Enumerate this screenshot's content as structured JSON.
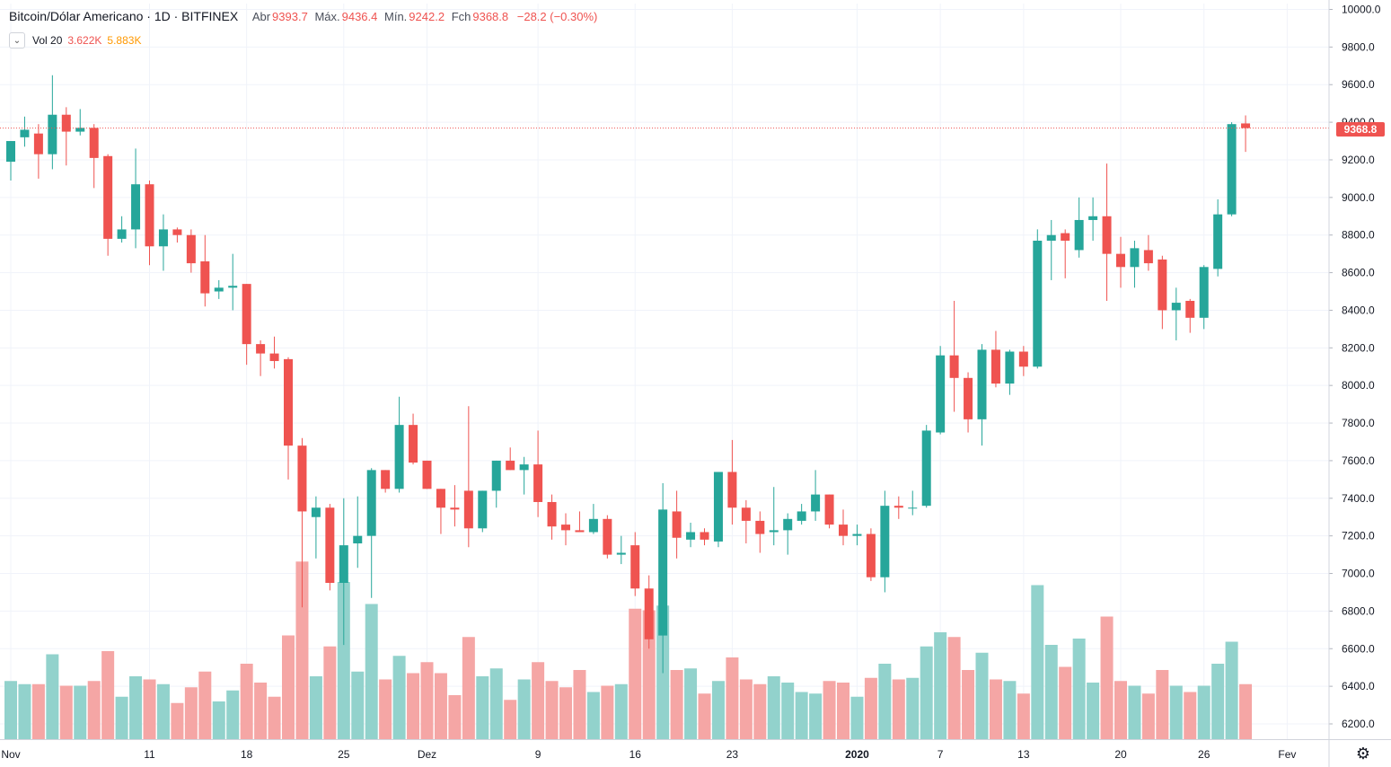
{
  "header": {
    "symbol": "Bitcoin/Dólar Americano · 1D · BITFINEX",
    "open_label": "Abr",
    "open_value": "9393.7",
    "high_label": "Máx.",
    "high_value": "9436.4",
    "low_label": "Mín.",
    "low_value": "9242.2",
    "close_label": "Fch",
    "close_value": "9368.8",
    "change": "−28.2 (−0.30%)"
  },
  "volume_legend": {
    "name": "Vol 20",
    "value1": "3.622K",
    "value2": "5.883K",
    "collapse_icon": "chevron-down-icon"
  },
  "last_price_tag": "9368.8",
  "colors": {
    "up": "#26a69a",
    "down": "#ef5350",
    "vol_up": "#92d2cc",
    "vol_down": "#f5a6a5",
    "grid": "#f0f3fa"
  },
  "chart_data": {
    "type": "candlestick",
    "series_name": "Bitcoin/Dólar Americano",
    "interval": "1D",
    "exchange": "BITFINEX",
    "ylim": [
      6150,
      10050
    ],
    "y_axis_side": "right",
    "y_ticks": [
      "10000.0",
      "9800.0",
      "9600.0",
      "9400.0",
      "9200.0",
      "9000.0",
      "8800.0",
      "8600.0",
      "8400.0",
      "8200.0",
      "8000.0",
      "7800.0",
      "7600.0",
      "7400.0",
      "7200.0",
      "7000.0",
      "6800.0",
      "6600.0",
      "6400.0",
      "6200.0"
    ],
    "x_ticks": [
      {
        "index": 0,
        "label": "Nov",
        "bold": false
      },
      {
        "index": 10,
        "label": "11",
        "bold": false
      },
      {
        "index": 17,
        "label": "18",
        "bold": false
      },
      {
        "index": 24,
        "label": "25",
        "bold": false
      },
      {
        "index": 30,
        "label": "Dez",
        "bold": false
      },
      {
        "index": 38,
        "label": "9",
        "bold": false
      },
      {
        "index": 45,
        "label": "16",
        "bold": false
      },
      {
        "index": 52,
        "label": "23",
        "bold": false
      },
      {
        "index": 61,
        "label": "2020",
        "bold": true
      },
      {
        "index": 67,
        "label": "7",
        "bold": false
      },
      {
        "index": 73,
        "label": "13",
        "bold": false
      },
      {
        "index": 80,
        "label": "20",
        "bold": false
      },
      {
        "index": 86,
        "label": "26",
        "bold": false
      },
      {
        "index": 92,
        "label": "Fev",
        "bold": false
      }
    ],
    "grid": true,
    "last_price_line": 9368.8,
    "candles": [
      {
        "o": 9190,
        "h": 9300,
        "l": 9090,
        "c": 9300,
        "v": 0.37
      },
      {
        "o": 9320,
        "h": 9430,
        "l": 9270,
        "c": 9360,
        "v": 0.35
      },
      {
        "o": 9340,
        "h": 9390,
        "l": 9100,
        "c": 9230,
        "v": 0.35
      },
      {
        "o": 9230,
        "h": 9650,
        "l": 9150,
        "c": 9440,
        "v": 0.54
      },
      {
        "o": 9440,
        "h": 9480,
        "l": 9170,
        "c": 9350,
        "v": 0.34
      },
      {
        "o": 9350,
        "h": 9470,
        "l": 9330,
        "c": 9370,
        "v": 0.34
      },
      {
        "o": 9370,
        "h": 9390,
        "l": 9050,
        "c": 9210,
        "v": 0.37
      },
      {
        "o": 9220,
        "h": 9230,
        "l": 8690,
        "c": 8780,
        "v": 0.56
      },
      {
        "o": 8780,
        "h": 8900,
        "l": 8760,
        "c": 8830,
        "v": 0.27
      },
      {
        "o": 8830,
        "h": 9260,
        "l": 8730,
        "c": 9070,
        "v": 0.4
      },
      {
        "o": 9070,
        "h": 9090,
        "l": 8640,
        "c": 8740,
        "v": 0.38
      },
      {
        "o": 8740,
        "h": 8910,
        "l": 8610,
        "c": 8830,
        "v": 0.35
      },
      {
        "o": 8830,
        "h": 8840,
        "l": 8760,
        "c": 8800,
        "v": 0.23
      },
      {
        "o": 8800,
        "h": 8830,
        "l": 8600,
        "c": 8650,
        "v": 0.33
      },
      {
        "o": 8660,
        "h": 8800,
        "l": 8420,
        "c": 8490,
        "v": 0.43
      },
      {
        "o": 8500,
        "h": 8560,
        "l": 8460,
        "c": 8520,
        "v": 0.24
      },
      {
        "o": 8520,
        "h": 8700,
        "l": 8400,
        "c": 8530,
        "v": 0.31
      },
      {
        "o": 8540,
        "h": 8540,
        "l": 8110,
        "c": 8220,
        "v": 0.48
      },
      {
        "o": 8220,
        "h": 8240,
        "l": 8050,
        "c": 8170,
        "v": 0.36
      },
      {
        "o": 8170,
        "h": 8260,
        "l": 8090,
        "c": 8130,
        "v": 0.27
      },
      {
        "o": 8140,
        "h": 8150,
        "l": 7500,
        "c": 7680,
        "v": 0.66
      },
      {
        "o": 7680,
        "h": 7720,
        "l": 6820,
        "c": 7330,
        "v": 1.13
      },
      {
        "o": 7300,
        "h": 7410,
        "l": 7080,
        "c": 7350,
        "v": 0.4
      },
      {
        "o": 7350,
        "h": 7370,
        "l": 6910,
        "c": 6950,
        "v": 0.59
      },
      {
        "o": 6950,
        "h": 7400,
        "l": 6620,
        "c": 7150,
        "v": 1.0
      },
      {
        "o": 7160,
        "h": 7410,
        "l": 7030,
        "c": 7200,
        "v": 0.43
      },
      {
        "o": 7200,
        "h": 7560,
        "l": 6870,
        "c": 7550,
        "v": 0.86
      },
      {
        "o": 7550,
        "h": 7550,
        "l": 7430,
        "c": 7450,
        "v": 0.38
      },
      {
        "o": 7450,
        "h": 7940,
        "l": 7430,
        "c": 7790,
        "v": 0.53
      },
      {
        "o": 7790,
        "h": 7850,
        "l": 7580,
        "c": 7590,
        "v": 0.42
      },
      {
        "o": 7600,
        "h": 7600,
        "l": 7450,
        "c": 7450,
        "v": 0.49
      },
      {
        "o": 7450,
        "h": 7450,
        "l": 7210,
        "c": 7350,
        "v": 0.42
      },
      {
        "o": 7350,
        "h": 7470,
        "l": 7250,
        "c": 7340,
        "v": 0.28
      },
      {
        "o": 7440,
        "h": 7890,
        "l": 7140,
        "c": 7240,
        "v": 0.65
      },
      {
        "o": 7240,
        "h": 7440,
        "l": 7220,
        "c": 7440,
        "v": 0.4
      },
      {
        "o": 7440,
        "h": 7600,
        "l": 7350,
        "c": 7600,
        "v": 0.45
      },
      {
        "o": 7600,
        "h": 7670,
        "l": 7550,
        "c": 7550,
        "v": 0.25
      },
      {
        "o": 7550,
        "h": 7620,
        "l": 7420,
        "c": 7580,
        "v": 0.38
      },
      {
        "o": 7580,
        "h": 7760,
        "l": 7300,
        "c": 7380,
        "v": 0.49
      },
      {
        "o": 7380,
        "h": 7420,
        "l": 7180,
        "c": 7250,
        "v": 0.37
      },
      {
        "o": 7260,
        "h": 7320,
        "l": 7150,
        "c": 7230,
        "v": 0.33
      },
      {
        "o": 7230,
        "h": 7330,
        "l": 7220,
        "c": 7220,
        "v": 0.44
      },
      {
        "o": 7220,
        "h": 7370,
        "l": 7210,
        "c": 7290,
        "v": 0.3
      },
      {
        "o": 7290,
        "h": 7310,
        "l": 7080,
        "c": 7100,
        "v": 0.34
      },
      {
        "o": 7100,
        "h": 7200,
        "l": 7050,
        "c": 7110,
        "v": 0.35
      },
      {
        "o": 7150,
        "h": 7220,
        "l": 6880,
        "c": 6920,
        "v": 0.83
      },
      {
        "o": 6920,
        "h": 6990,
        "l": 6600,
        "c": 6650,
        "v": 0.82
      },
      {
        "o": 6670,
        "h": 7480,
        "l": 6470,
        "c": 7340,
        "v": 0.85
      },
      {
        "o": 7330,
        "h": 7440,
        "l": 7080,
        "c": 7190,
        "v": 0.44
      },
      {
        "o": 7180,
        "h": 7270,
        "l": 7140,
        "c": 7220,
        "v": 0.45
      },
      {
        "o": 7220,
        "h": 7240,
        "l": 7150,
        "c": 7180,
        "v": 0.29
      },
      {
        "o": 7170,
        "h": 7540,
        "l": 7140,
        "c": 7540,
        "v": 0.37
      },
      {
        "o": 7540,
        "h": 7710,
        "l": 7260,
        "c": 7350,
        "v": 0.52
      },
      {
        "o": 7350,
        "h": 7390,
        "l": 7160,
        "c": 7280,
        "v": 0.38
      },
      {
        "o": 7280,
        "h": 7330,
        "l": 7110,
        "c": 7210,
        "v": 0.35
      },
      {
        "o": 7220,
        "h": 7460,
        "l": 7150,
        "c": 7230,
        "v": 0.4
      },
      {
        "o": 7230,
        "h": 7320,
        "l": 7100,
        "c": 7290,
        "v": 0.36
      },
      {
        "o": 7280,
        "h": 7370,
        "l": 7260,
        "c": 7330,
        "v": 0.3
      },
      {
        "o": 7330,
        "h": 7550,
        "l": 7280,
        "c": 7420,
        "v": 0.29
      },
      {
        "o": 7420,
        "h": 7420,
        "l": 7240,
        "c": 7260,
        "v": 0.37
      },
      {
        "o": 7260,
        "h": 7340,
        "l": 7150,
        "c": 7200,
        "v": 0.36
      },
      {
        "o": 7200,
        "h": 7260,
        "l": 7150,
        "c": 7210,
        "v": 0.27
      },
      {
        "o": 7210,
        "h": 7240,
        "l": 6960,
        "c": 6980,
        "v": 0.39
      },
      {
        "o": 6980,
        "h": 7440,
        "l": 6900,
        "c": 7360,
        "v": 0.48
      },
      {
        "o": 7360,
        "h": 7410,
        "l": 7290,
        "c": 7350,
        "v": 0.38
      },
      {
        "o": 7350,
        "h": 7440,
        "l": 7310,
        "c": 7350,
        "v": 0.39
      },
      {
        "o": 7360,
        "h": 7790,
        "l": 7350,
        "c": 7760,
        "v": 0.59
      },
      {
        "o": 7750,
        "h": 8210,
        "l": 7740,
        "c": 8160,
        "v": 0.68
      },
      {
        "o": 8160,
        "h": 8450,
        "l": 7860,
        "c": 8040,
        "v": 0.65
      },
      {
        "o": 8040,
        "h": 8070,
        "l": 7750,
        "c": 7820,
        "v": 0.44
      },
      {
        "o": 7820,
        "h": 8220,
        "l": 7680,
        "c": 8190,
        "v": 0.55
      },
      {
        "o": 8190,
        "h": 8290,
        "l": 7990,
        "c": 8010,
        "v": 0.38
      },
      {
        "o": 8010,
        "h": 8190,
        "l": 7950,
        "c": 8180,
        "v": 0.37
      },
      {
        "o": 8180,
        "h": 8210,
        "l": 8050,
        "c": 8100,
        "v": 0.29
      },
      {
        "o": 8100,
        "h": 8830,
        "l": 8090,
        "c": 8770,
        "v": 0.98
      },
      {
        "o": 8770,
        "h": 8880,
        "l": 8560,
        "c": 8800,
        "v": 0.6
      },
      {
        "o": 8810,
        "h": 8830,
        "l": 8570,
        "c": 8770,
        "v": 0.46
      },
      {
        "o": 8720,
        "h": 9000,
        "l": 8680,
        "c": 8880,
        "v": 0.64
      },
      {
        "o": 8880,
        "h": 9000,
        "l": 8770,
        "c": 8900,
        "v": 0.36
      },
      {
        "o": 8900,
        "h": 9180,
        "l": 8450,
        "c": 8700,
        "v": 0.78
      },
      {
        "o": 8700,
        "h": 8790,
        "l": 8520,
        "c": 8630,
        "v": 0.37
      },
      {
        "o": 8630,
        "h": 8770,
        "l": 8520,
        "c": 8730,
        "v": 0.34
      },
      {
        "o": 8720,
        "h": 8800,
        "l": 8610,
        "c": 8650,
        "v": 0.29
      },
      {
        "o": 8670,
        "h": 8690,
        "l": 8300,
        "c": 8400,
        "v": 0.44
      },
      {
        "o": 8400,
        "h": 8520,
        "l": 8240,
        "c": 8440,
        "v": 0.34
      },
      {
        "o": 8450,
        "h": 8460,
        "l": 8280,
        "c": 8360,
        "v": 0.3
      },
      {
        "o": 8360,
        "h": 8640,
        "l": 8300,
        "c": 8630,
        "v": 0.34
      },
      {
        "o": 8620,
        "h": 8990,
        "l": 8580,
        "c": 8910,
        "v": 0.48
      },
      {
        "o": 8910,
        "h": 9400,
        "l": 8900,
        "c": 9390,
        "v": 0.62
      },
      {
        "o": 9393.7,
        "h": 9436.4,
        "l": 9242.2,
        "c": 9368.8,
        "v": 0.35
      }
    ]
  }
}
